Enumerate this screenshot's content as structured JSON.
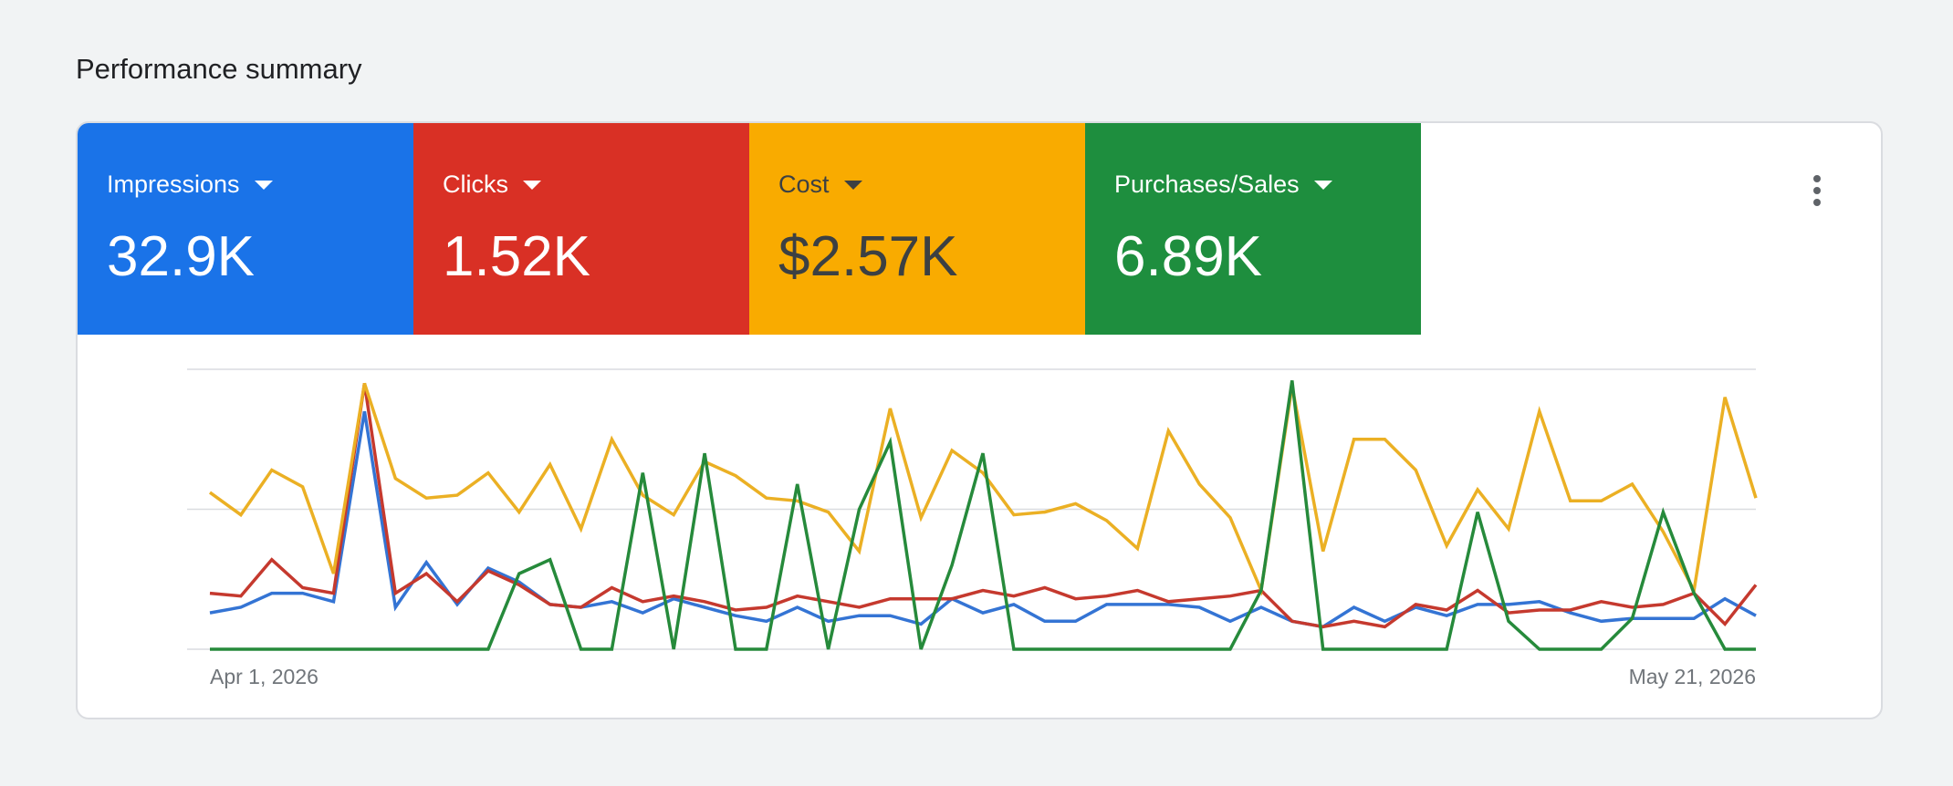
{
  "page": {
    "title": "Performance summary"
  },
  "metrics": [
    {
      "label": "Impressions",
      "value": "32.9K",
      "color": "#1a73e8",
      "text_color": "#ffffff"
    },
    {
      "label": "Clicks",
      "value": "1.52K",
      "color": "#d93025",
      "text_color": "#ffffff"
    },
    {
      "label": "Cost",
      "value": "$2.57K",
      "color": "#f9ab00",
      "text_color": "#3c4043"
    },
    {
      "label": "Purchases/Sales",
      "value": "6.89K",
      "color": "#1e8e3e",
      "text_color": "#ffffff"
    }
  ],
  "more_menu_icon": "more-vert-icon",
  "chart_data": {
    "type": "line",
    "x_start_label": "Apr 1, 2026",
    "x_end_label": "May 21, 2026",
    "grid": true,
    "y_min": 0,
    "y_max": 100,
    "series": [
      {
        "metric": "Impressions",
        "color": "#3474d4",
        "values": [
          13,
          15,
          20,
          20,
          17,
          85,
          15,
          31,
          16,
          29,
          24,
          16,
          15,
          17,
          13,
          18,
          15,
          12,
          10,
          15,
          10,
          12,
          12,
          9,
          18,
          13,
          16,
          10,
          10,
          16,
          16,
          16,
          15,
          10,
          15,
          10,
          8,
          15,
          10,
          15,
          12,
          16,
          16,
          17,
          13,
          10,
          11,
          11,
          11,
          18,
          12
        ]
      },
      {
        "metric": "Clicks",
        "color": "#c5392e",
        "values": [
          20,
          19,
          32,
          22,
          20,
          95,
          20,
          27,
          17,
          28,
          23,
          16,
          15,
          22,
          17,
          19,
          17,
          14,
          15,
          19,
          17,
          15,
          18,
          18,
          18,
          21,
          19,
          22,
          18,
          19,
          21,
          17,
          18,
          19,
          21,
          10,
          8,
          10,
          8,
          16,
          14,
          21,
          13,
          14,
          14,
          17,
          15,
          16,
          20,
          9,
          23
        ]
      },
      {
        "metric": "Cost",
        "color": "#ebb024",
        "values": [
          56,
          48,
          64,
          58,
          27,
          95,
          61,
          54,
          55,
          63,
          49,
          66,
          43,
          75,
          55,
          48,
          67,
          62,
          54,
          53,
          49,
          35,
          86,
          47,
          71,
          63,
          48,
          49,
          52,
          46,
          36,
          78,
          59,
          47,
          21,
          94,
          35,
          75,
          75,
          64,
          37,
          57,
          43,
          85,
          53,
          53,
          59,
          42,
          21,
          90,
          54
        ]
      },
      {
        "metric": "Purchases/Sales",
        "color": "#268a3b",
        "values": [
          0,
          0,
          0,
          0,
          0,
          0,
          0,
          0,
          0,
          0,
          27,
          32,
          0,
          0,
          63,
          0,
          70,
          0,
          0,
          59,
          0,
          50,
          74,
          0,
          30,
          70,
          0,
          0,
          0,
          0,
          0,
          0,
          0,
          0,
          21,
          96,
          0,
          0,
          0,
          0,
          0,
          49,
          10,
          0,
          0,
          0,
          11,
          49,
          20,
          0,
          0
        ]
      }
    ]
  }
}
